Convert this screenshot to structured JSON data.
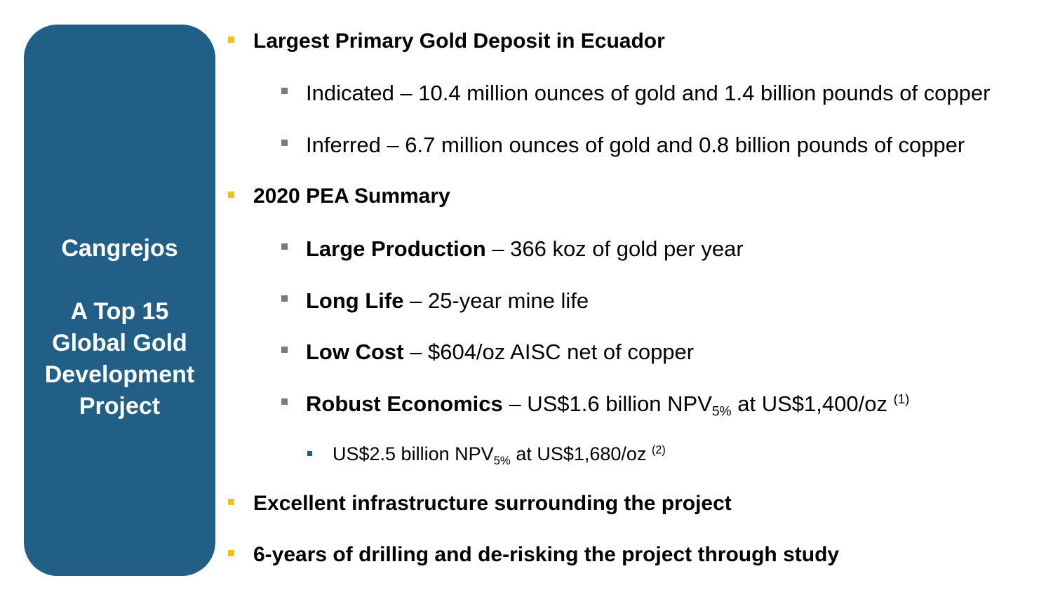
{
  "side": {
    "title": "Cangrejos",
    "line1": "A Top 15",
    "line2": "Global Gold",
    "line3": "Development",
    "line4": "Project"
  },
  "bullets": {
    "b1": "Largest Primary Gold Deposit in Ecuador",
    "b1_1": "Indicated – 10.4 million ounces of gold and 1.4 billion pounds of copper",
    "b1_2": "Inferred – 6.7 million ounces of gold and 0.8 billion pounds of copper",
    "b2": "2020 PEA Summary",
    "b2_1_bold": "Large Production",
    "b2_1_rest": " – 366 koz of gold per year",
    "b2_2_bold": "Long Life",
    "b2_2_rest": " – 25-year mine life",
    "b2_3_bold": "Low Cost",
    "b2_3_rest": " – $604/oz AISC net of copper",
    "b2_4_bold": "Robust Economics",
    "b2_4_pre": " – US$1.6 billion NPV",
    "b2_4_sub": "5%",
    "b2_4_post": " at US$1,400/oz ",
    "b2_4_note": "(1)",
    "b2_4_1_pre": "US$2.5 billion NPV",
    "b2_4_1_sub": "5%",
    "b2_4_1_post": " at US$1,680/oz ",
    "b2_4_1_note": "(2)",
    "b3": "Excellent infrastructure surrounding the project",
    "b4": "6-years of drilling and de-risking the project through study"
  },
  "colors": {
    "panel": "#225f86",
    "bullet_primary": "#f5c400",
    "bullet_secondary": "#7a7a7a",
    "bullet_tertiary": "#225f86"
  }
}
